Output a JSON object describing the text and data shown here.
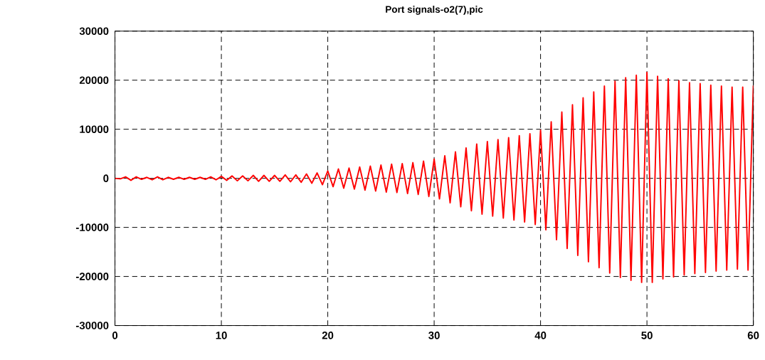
{
  "chart_data": {
    "type": "line",
    "title": "Port signals-o2(7),pic",
    "x": [
      0,
      0.5,
      1,
      1.5,
      2,
      2.5,
      3,
      3.5,
      4,
      4.5,
      5,
      5.5,
      6,
      6.5,
      7,
      7.5,
      8,
      8.5,
      9,
      9.5,
      10,
      10.5,
      11,
      11.5,
      12,
      12.5,
      13,
      13.5,
      14,
      14.5,
      15,
      15.5,
      16,
      16.5,
      17,
      17.5,
      18,
      18.5,
      19,
      19.5,
      20,
      20.5,
      21,
      21.5,
      22,
      22.5,
      23,
      23.5,
      24,
      24.5,
      25,
      25.5,
      26,
      26.5,
      27,
      27.5,
      28,
      28.5,
      29,
      29.5,
      30,
      30.5,
      31,
      31.5,
      32,
      32.5,
      33,
      33.5,
      34,
      34.5,
      35,
      35.5,
      36,
      36.5,
      37,
      37.5,
      38,
      38.5,
      39,
      39.5,
      40,
      40.5,
      41,
      41.5,
      42,
      42.5,
      43,
      43.5,
      44,
      44.5,
      45,
      45.5,
      46,
      46.5,
      47,
      47.5,
      48,
      48.5,
      49,
      49.5,
      50,
      50.5,
      51,
      51.5,
      52,
      52.5,
      53,
      53.5,
      54,
      54.5,
      55,
      55.5,
      56,
      56.5,
      57,
      57.5,
      58,
      58.5,
      59,
      59.5,
      60
    ],
    "series": [
      {
        "color": "#ff0000",
        "values": [
          0,
          -100,
          300,
          -400,
          300,
          -200,
          200,
          -300,
          300,
          -300,
          200,
          -200,
          200,
          -200,
          200,
          -200,
          200,
          -200,
          300,
          -300,
          400,
          -400,
          500,
          -500,
          500,
          -500,
          600,
          -600,
          600,
          -600,
          600,
          -600,
          700,
          -700,
          700,
          -800,
          900,
          -1000,
          1100,
          -1300,
          1500,
          -1700,
          1900,
          -2000,
          2100,
          -2200,
          2300,
          -2400,
          2500,
          -2600,
          2700,
          -2800,
          2900,
          -2900,
          3000,
          -3100,
          3200,
          -3300,
          3500,
          -3700,
          3900,
          -4200,
          4600,
          -5000,
          5400,
          -5800,
          6200,
          -6600,
          7000,
          -7300,
          7500,
          -7700,
          7900,
          -8100,
          8300,
          -8500,
          8700,
          -8900,
          9100,
          -9400,
          9800,
          -10500,
          11500,
          -12500,
          13500,
          -14300,
          15000,
          -15700,
          16400,
          -17000,
          17600,
          -18200,
          18800,
          -19300,
          19800,
          -20200,
          20500,
          -20800,
          21000,
          -21200,
          21600,
          -21200,
          20800,
          -20500,
          20300,
          -20100,
          19900,
          -19700,
          19500,
          -19400,
          19300,
          -19200,
          19000,
          -18900,
          18800,
          -18700,
          18600,
          -18500,
          18600,
          -18700,
          18900
        ]
      }
    ],
    "xlim": [
      0,
      60
    ],
    "xticks": [
      0,
      10,
      20,
      30,
      40,
      50,
      60
    ],
    "ylim": [
      -30000,
      30000
    ],
    "yticks": [
      -30000,
      -20000,
      -10000,
      0,
      10000,
      20000,
      30000
    ],
    "grid": true,
    "marker": "none",
    "line_style": "solid"
  }
}
